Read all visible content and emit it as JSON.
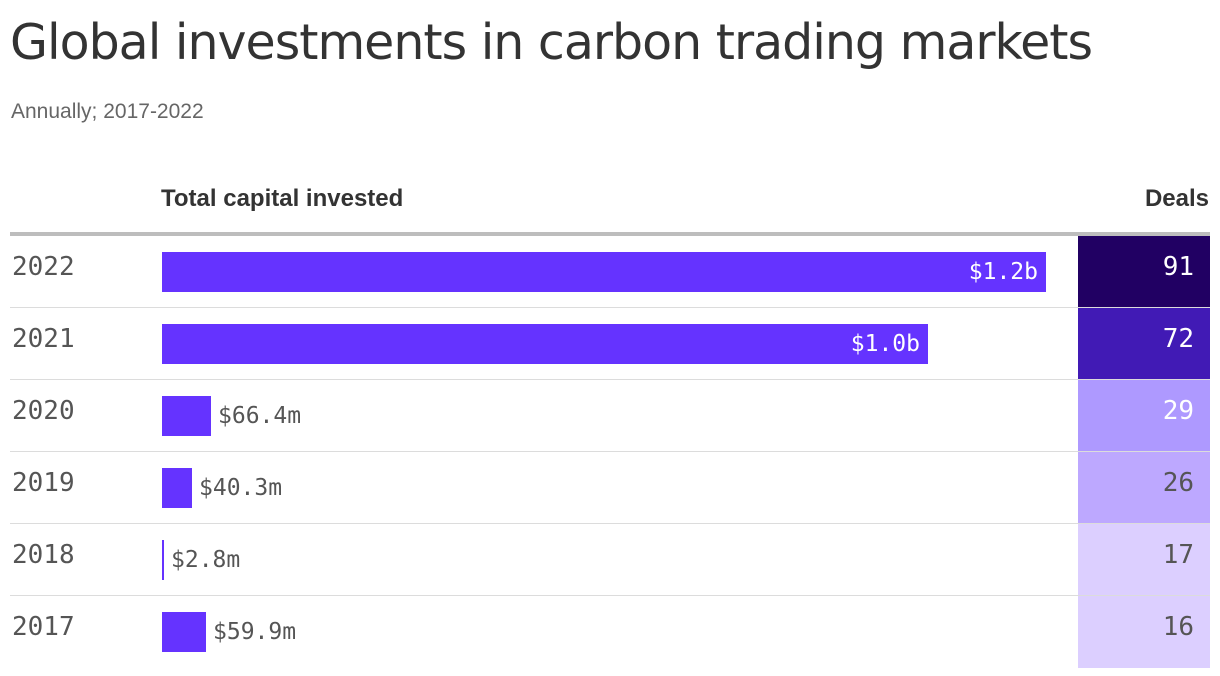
{
  "title": "Global investments in carbon trading markets",
  "subtitle": "Annually; 2017-2022",
  "columns": {
    "capital": "Total capital invested",
    "deals": "Deals"
  },
  "colors": {
    "bar": "#6533ff",
    "text": "#333333",
    "muted": "#555555"
  },
  "chart_data": {
    "type": "table",
    "title": "Global investments in carbon trading markets",
    "subtitle": "Annually; 2017-2022",
    "columns": [
      "Total capital invested",
      "Deals"
    ],
    "unit": "USD",
    "rows": [
      {
        "year": "2022",
        "capital_usd": 1200000000,
        "capital_label": "$1.2b",
        "deals": 91,
        "deals_label": "91",
        "deals_color": "#210063",
        "deals_text_color": "#ffffff"
      },
      {
        "year": "2021",
        "capital_usd": 1040000000,
        "capital_label": "$1.0b",
        "deals": 72,
        "deals_label": "72",
        "deals_color": "#411ab5",
        "deals_text_color": "#ffffff"
      },
      {
        "year": "2020",
        "capital_usd": 66400000,
        "capital_label": "$66.4m",
        "deals": 29,
        "deals_label": "29",
        "deals_color": "#ae99ff",
        "deals_text_color": "#ffffff"
      },
      {
        "year": "2019",
        "capital_usd": 40300000,
        "capital_label": "$40.3m",
        "deals": 26,
        "deals_label": "26",
        "deals_color": "#bda8ff",
        "deals_text_color": "#555555"
      },
      {
        "year": "2018",
        "capital_usd": 2800000,
        "capital_label": "$2.8m",
        "deals": 17,
        "deals_label": "17",
        "deals_color": "#dccfff",
        "deals_text_color": "#555555"
      },
      {
        "year": "2017",
        "capital_usd": 59900000,
        "capital_label": "$59.9m",
        "deals": 16,
        "deals_label": "16",
        "deals_color": "#dccfff",
        "deals_text_color": "#555555"
      }
    ]
  }
}
